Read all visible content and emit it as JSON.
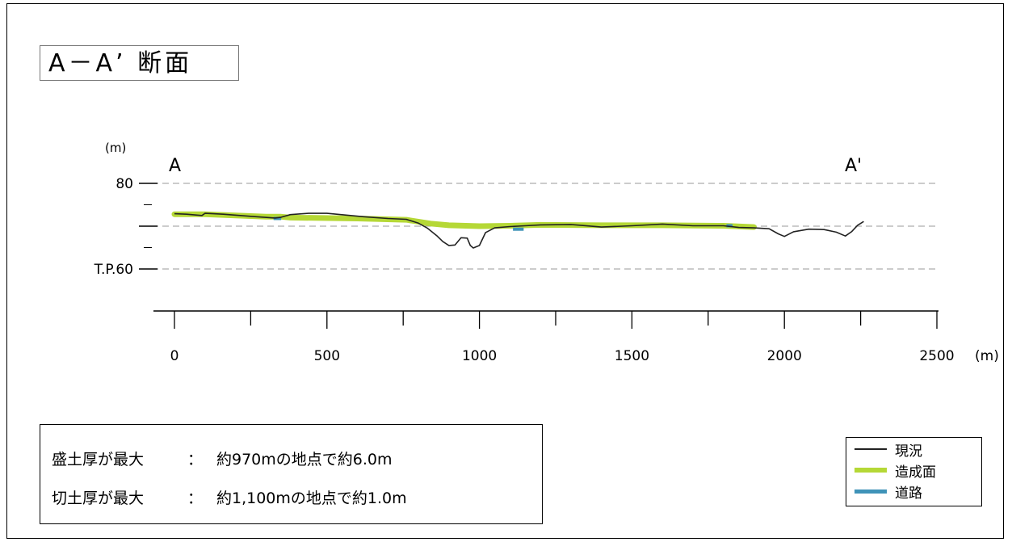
{
  "title": "A－A’ 断面",
  "chart_data": {
    "type": "line",
    "title": "A－A’ 断面",
    "xlabel": "",
    "ylabel": "",
    "x_unit": "(m)",
    "y_unit": "(m)",
    "xlim": [
      0,
      2500
    ],
    "ylim": [
      50,
      84
    ],
    "x_ticks": [
      0,
      500,
      1000,
      1500,
      2000,
      2500
    ],
    "x_tick_labels": [
      "0",
      "500",
      "1000",
      "1500",
      "2000",
      "2500"
    ],
    "y_ticks": [
      80,
      70,
      60
    ],
    "y_tick_labels": [
      "80",
      "",
      "T.P.60"
    ],
    "grid": "dashed horizontal at 80, 70, 60",
    "point_labels": {
      "start": "A",
      "end": "A'"
    },
    "series": [
      {
        "name": "現況",
        "color": "#222222",
        "x": [
          0,
          40,
          90,
          100,
          160,
          250,
          330,
          350,
          380,
          440,
          500,
          560,
          620,
          700,
          760,
          800,
          830,
          860,
          880,
          900,
          920,
          940,
          960,
          970,
          980,
          1000,
          1020,
          1050,
          1100,
          1150,
          1200,
          1300,
          1400,
          1500,
          1600,
          1700,
          1800,
          1850,
          1900,
          1950,
          1980,
          2000,
          2030,
          2080,
          2130,
          2170,
          2200,
          2220,
          2240,
          2260
        ],
        "y": [
          72.9,
          72.8,
          72.5,
          73.0,
          72.8,
          72.3,
          71.9,
          72.1,
          72.7,
          73.0,
          73.0,
          72.6,
          72.2,
          71.8,
          71.6,
          70.7,
          69.5,
          67.8,
          66.4,
          65.5,
          65.6,
          67.3,
          67.2,
          65.5,
          64.9,
          65.5,
          68.5,
          69.6,
          69.9,
          70.1,
          70.3,
          70.4,
          69.8,
          70.1,
          70.5,
          70.1,
          70.1,
          69.7,
          69.6,
          69.4,
          68.2,
          67.6,
          68.7,
          69.3,
          69.2,
          68.6,
          67.7,
          68.7,
          70.2,
          71.1
        ]
      },
      {
        "name": "造成面",
        "color": "#b5d836",
        "x": [
          0,
          100,
          300,
          350,
          380,
          600,
          760,
          840,
          900,
          1000,
          1100,
          1200,
          1400,
          1600,
          1800,
          1900
        ],
        "y": [
          72.8,
          72.8,
          72.2,
          72.2,
          72.0,
          71.8,
          71.5,
          70.6,
          70.2,
          70.0,
          70.1,
          70.3,
          70.2,
          70.2,
          70.1,
          69.8
        ]
      },
      {
        "name": "道路",
        "color": "#3f93b8",
        "segments": [
          {
            "x": [
              325,
              350
            ],
            "y": [
              71.8,
              71.8
            ]
          },
          {
            "x": [
              1110,
              1145
            ],
            "y": [
              69.3,
              69.3
            ]
          },
          {
            "x": [
              1810,
              1830
            ],
            "y": [
              70.1,
              70.1
            ]
          }
        ]
      }
    ]
  },
  "info": {
    "row1": {
      "label": "盛土厚が最大",
      "sep": "：",
      "value": "約970mの地点で約6.0m"
    },
    "row2": {
      "label": "切土厚が最大",
      "sep": "：",
      "value": "約1,100mの地点で約1.0m"
    }
  },
  "legend": [
    {
      "label": "現況",
      "color": "#222222",
      "thickness": 1.5
    },
    {
      "label": "造成面",
      "color": "#b5d836",
      "thickness": 6
    },
    {
      "label": "道路",
      "color": "#3f93b8",
      "thickness": 5
    }
  ]
}
